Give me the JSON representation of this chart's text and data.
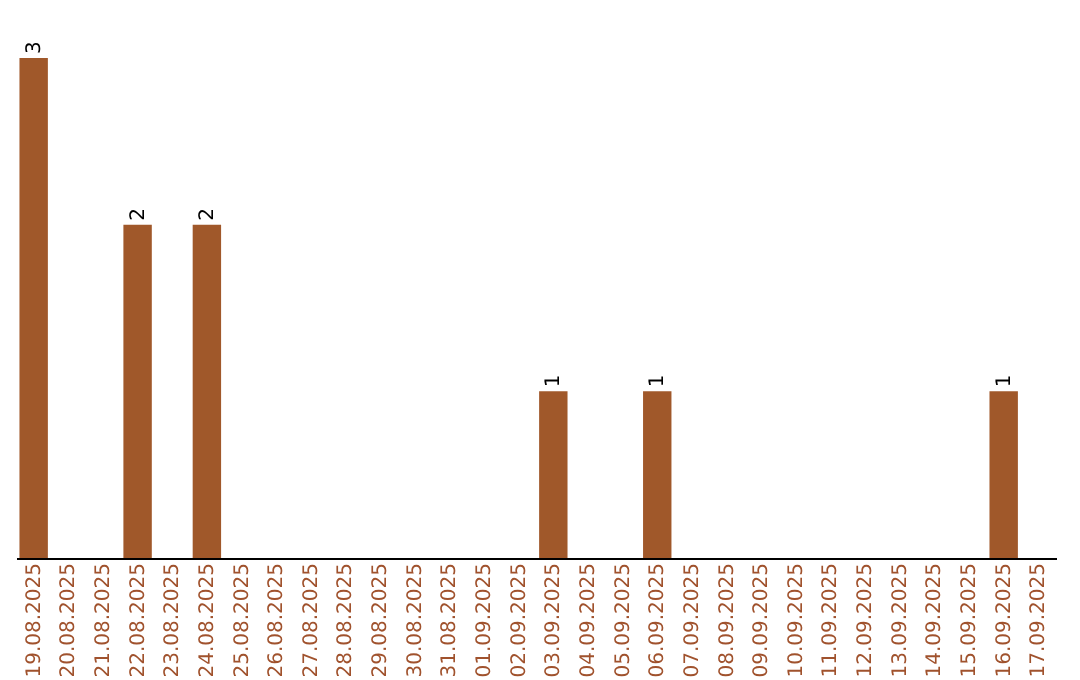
{
  "chart_data": {
    "type": "bar",
    "categories": [
      "19.08.2025",
      "20.08.2025",
      "21.08.2025",
      "22.08.2025",
      "23.08.2025",
      "24.08.2025",
      "25.08.2025",
      "26.08.2025",
      "27.08.2025",
      "28.08.2025",
      "29.08.2025",
      "30.08.2025",
      "31.08.2025",
      "01.09.2025",
      "02.09.2025",
      "03.09.2025",
      "04.09.2025",
      "05.09.2025",
      "06.09.2025",
      "07.09.2025",
      "08.09.2025",
      "09.09.2025",
      "10.09.2025",
      "11.09.2025",
      "12.09.2025",
      "13.09.2025",
      "14.09.2025",
      "15.09.2025",
      "16.09.2025",
      "17.09.2025"
    ],
    "values": [
      3,
      0,
      0,
      2,
      0,
      2,
      0,
      0,
      0,
      0,
      0,
      0,
      0,
      0,
      0,
      1,
      0,
      0,
      1,
      0,
      0,
      0,
      0,
      0,
      0,
      0,
      0,
      0,
      1,
      0
    ],
    "value_labels": [
      "3",
      null,
      null,
      "2",
      null,
      "2",
      null,
      null,
      null,
      null,
      null,
      null,
      null,
      null,
      null,
      "1",
      null,
      null,
      "1",
      null,
      null,
      null,
      null,
      null,
      null,
      null,
      null,
      null,
      "1",
      null
    ],
    "color": "#a0582a",
    "grid": false
  }
}
